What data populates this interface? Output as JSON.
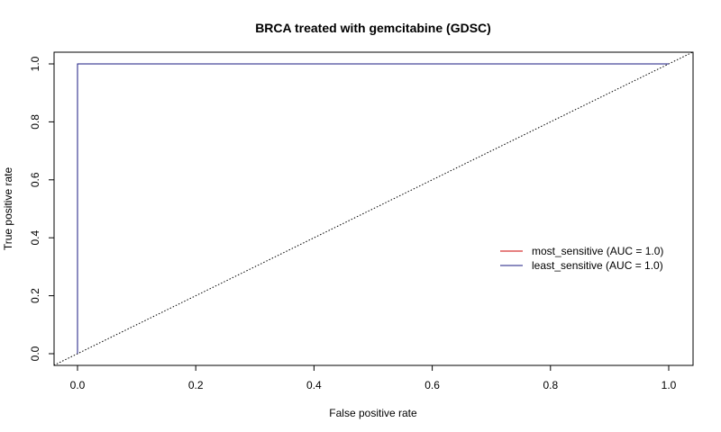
{
  "chart_data": {
    "type": "line",
    "title": "BRCA treated with gemcitabine (GDSC)",
    "xlabel": "False positive rate",
    "ylabel": "True positive rate",
    "xlim": [
      0,
      1
    ],
    "ylim": [
      0,
      1
    ],
    "x_ticks": [
      "0.0",
      "0.2",
      "0.4",
      "0.6",
      "0.8",
      "1.0"
    ],
    "y_ticks": [
      "0.0",
      "0.2",
      "0.4",
      "0.6",
      "0.8",
      "1.0"
    ],
    "grid": false,
    "legend_position": "right",
    "series": [
      {
        "name": "most_sensitive (AUC = 1.0)",
        "color": "#cc0000",
        "line_style": "solid",
        "points": [
          [
            0,
            0
          ],
          [
            0,
            1
          ],
          [
            1,
            1
          ]
        ]
      },
      {
        "name": "least_sensitive (AUC = 1.0)",
        "color": "#1a1a80",
        "line_style": "solid",
        "points": [
          [
            0,
            0
          ],
          [
            0,
            1
          ],
          [
            1,
            1
          ]
        ]
      }
    ],
    "reference_line": {
      "color": "#000000",
      "line_style": "dotted",
      "points": [
        [
          0,
          0
        ],
        [
          1,
          1
        ]
      ]
    }
  }
}
